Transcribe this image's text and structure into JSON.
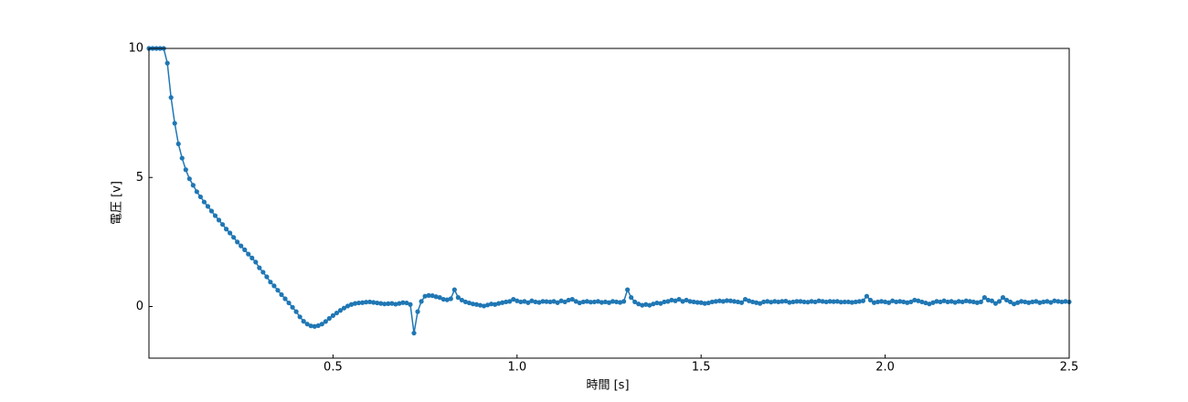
{
  "chart_data": {
    "type": "line",
    "xlabel": "時間 [s]",
    "ylabel": "電圧 [v]",
    "x": [
      0,
      0.01,
      0.02,
      0.03,
      0.04,
      0.05,
      0.06,
      0.07,
      0.08,
      0.09,
      0.1,
      0.11,
      0.12,
      0.13,
      0.14,
      0.15,
      0.16,
      0.17,
      0.18,
      0.19,
      0.2,
      0.21,
      0.22,
      0.23,
      0.24,
      0.25,
      0.26,
      0.27,
      0.28,
      0.29,
      0.3,
      0.31,
      0.32,
      0.33,
      0.34,
      0.35,
      0.36,
      0.37,
      0.38,
      0.39,
      0.4,
      0.41,
      0.42,
      0.43,
      0.44,
      0.45,
      0.46,
      0.47,
      0.48,
      0.49,
      0.5,
      0.51,
      0.52,
      0.53,
      0.54,
      0.55,
      0.56,
      0.57,
      0.58,
      0.59,
      0.6,
      0.61,
      0.62,
      0.63,
      0.64,
      0.65,
      0.66,
      0.67,
      0.68,
      0.69,
      0.7,
      0.71,
      0.72,
      0.73,
      0.74,
      0.75,
      0.76,
      0.77,
      0.78,
      0.79,
      0.8,
      0.81,
      0.82,
      0.83,
      0.84,
      0.85,
      0.86,
      0.87,
      0.88,
      0.89,
      0.9,
      0.91,
      0.92,
      0.93,
      0.94,
      0.95,
      0.96,
      0.97,
      0.98,
      0.99,
      1,
      1.01,
      1.02,
      1.03,
      1.04,
      1.05,
      1.06,
      1.07,
      1.08,
      1.09,
      1.1,
      1.11,
      1.12,
      1.13,
      1.14,
      1.15,
      1.16,
      1.17,
      1.18,
      1.19,
      1.2,
      1.21,
      1.22,
      1.23,
      1.24,
      1.25,
      1.26,
      1.27,
      1.28,
      1.29,
      1.3,
      1.31,
      1.32,
      1.33,
      1.34,
      1.35,
      1.36,
      1.37,
      1.38,
      1.39,
      1.4,
      1.41,
      1.42,
      1.43,
      1.44,
      1.45,
      1.46,
      1.47,
      1.48,
      1.49,
      1.5,
      1.51,
      1.52,
      1.53,
      1.54,
      1.55,
      1.56,
      1.57,
      1.58,
      1.59,
      1.6,
      1.61,
      1.62,
      1.63,
      1.64,
      1.65,
      1.66,
      1.67,
      1.68,
      1.69,
      1.7,
      1.71,
      1.72,
      1.73,
      1.74,
      1.75,
      1.76,
      1.77,
      1.78,
      1.79,
      1.8,
      1.81,
      1.82,
      1.83,
      1.84,
      1.85,
      1.86,
      1.87,
      1.88,
      1.89,
      1.9,
      1.91,
      1.92,
      1.93,
      1.94,
      1.95,
      1.96,
      1.97,
      1.98,
      1.99,
      2,
      2.01,
      2.02,
      2.03,
      2.04,
      2.05,
      2.06,
      2.07,
      2.08,
      2.09,
      2.1,
      2.11,
      2.12,
      2.13,
      2.14,
      2.15,
      2.16,
      2.17,
      2.18,
      2.19,
      2.2,
      2.21,
      2.22,
      2.23,
      2.24,
      2.25,
      2.26,
      2.27,
      2.28,
      2.29,
      2.3,
      2.31,
      2.32,
      2.33,
      2.34,
      2.35,
      2.36,
      2.37,
      2.38,
      2.39,
      2.4,
      2.41,
      2.42,
      2.43,
      2.44,
      2.45,
      2.46,
      2.47,
      2.48,
      2.49,
      2.5
    ],
    "series": [
      {
        "color": "#1f77b4",
        "values": [
          10,
          10,
          10,
          10,
          10,
          9.43,
          8.1,
          7.1,
          6.3,
          5.75,
          5.3,
          4.95,
          4.7,
          4.45,
          4.25,
          4.05,
          3.88,
          3.7,
          3.52,
          3.35,
          3.18,
          3.0,
          2.85,
          2.68,
          2.5,
          2.35,
          2.2,
          2.03,
          1.88,
          1.72,
          1.5,
          1.33,
          1.15,
          0.95,
          0.8,
          0.63,
          0.46,
          0.3,
          0.14,
          -0.03,
          -0.2,
          -0.4,
          -0.57,
          -0.68,
          -0.75,
          -0.77,
          -0.74,
          -0.68,
          -0.58,
          -0.46,
          -0.35,
          -0.25,
          -0.15,
          -0.06,
          0.02,
          0.08,
          0.12,
          0.14,
          0.15,
          0.17,
          0.18,
          0.16,
          0.14,
          0.12,
          0.1,
          0.11,
          0.12,
          0.09,
          0.12,
          0.15,
          0.14,
          0.08,
          -1.03,
          -0.2,
          0.2,
          0.4,
          0.43,
          0.42,
          0.38,
          0.35,
          0.28,
          0.26,
          0.3,
          0.65,
          0.35,
          0.25,
          0.18,
          0.14,
          0.1,
          0.08,
          0.05,
          0.02,
          0.06,
          0.1,
          0.08,
          0.12,
          0.15,
          0.18,
          0.2,
          0.28,
          0.22,
          0.18,
          0.2,
          0.15,
          0.22,
          0.18,
          0.16,
          0.2,
          0.19,
          0.18,
          0.2,
          0.15,
          0.22,
          0.18,
          0.25,
          0.28,
          0.2,
          0.14,
          0.18,
          0.2,
          0.17,
          0.18,
          0.2,
          0.16,
          0.18,
          0.15,
          0.2,
          0.18,
          0.16,
          0.2,
          0.65,
          0.35,
          0.18,
          0.1,
          0.05,
          0.08,
          0.05,
          0.1,
          0.14,
          0.12,
          0.18,
          0.2,
          0.25,
          0.22,
          0.28,
          0.2,
          0.25,
          0.2,
          0.18,
          0.16,
          0.15,
          0.12,
          0.14,
          0.18,
          0.2,
          0.22,
          0.2,
          0.23,
          0.22,
          0.2,
          0.18,
          0.15,
          0.28,
          0.22,
          0.18,
          0.15,
          0.12,
          0.18,
          0.2,
          0.17,
          0.2,
          0.18,
          0.2,
          0.21,
          0.16,
          0.18,
          0.2,
          0.2,
          0.18,
          0.17,
          0.2,
          0.18,
          0.22,
          0.2,
          0.18,
          0.2,
          0.19,
          0.2,
          0.17,
          0.18,
          0.18,
          0.16,
          0.18,
          0.2,
          0.22,
          0.4,
          0.25,
          0.15,
          0.18,
          0.2,
          0.18,
          0.15,
          0.22,
          0.18,
          0.2,
          0.18,
          0.15,
          0.18,
          0.25,
          0.22,
          0.18,
          0.14,
          0.1,
          0.15,
          0.2,
          0.18,
          0.22,
          0.18,
          0.2,
          0.16,
          0.2,
          0.18,
          0.22,
          0.2,
          0.18,
          0.15,
          0.18,
          0.35,
          0.25,
          0.22,
          0.12,
          0.2,
          0.35,
          0.25,
          0.18,
          0.1,
          0.15,
          0.2,
          0.18,
          0.15,
          0.18,
          0.2,
          0.15,
          0.18,
          0.2,
          0.16,
          0.22,
          0.2,
          0.18,
          0.2,
          0.18
        ]
      }
    ],
    "xlim": [
      0,
      2.5
    ],
    "xticks": [
      0.5,
      {
        "value": 1,
        "label": "1.0"
      },
      1.5,
      {
        "value": 2,
        "label": "2.0"
      },
      2.5
    ],
    "ylim": [
      -2,
      10
    ],
    "yticks": [
      0,
      5,
      10
    ]
  }
}
